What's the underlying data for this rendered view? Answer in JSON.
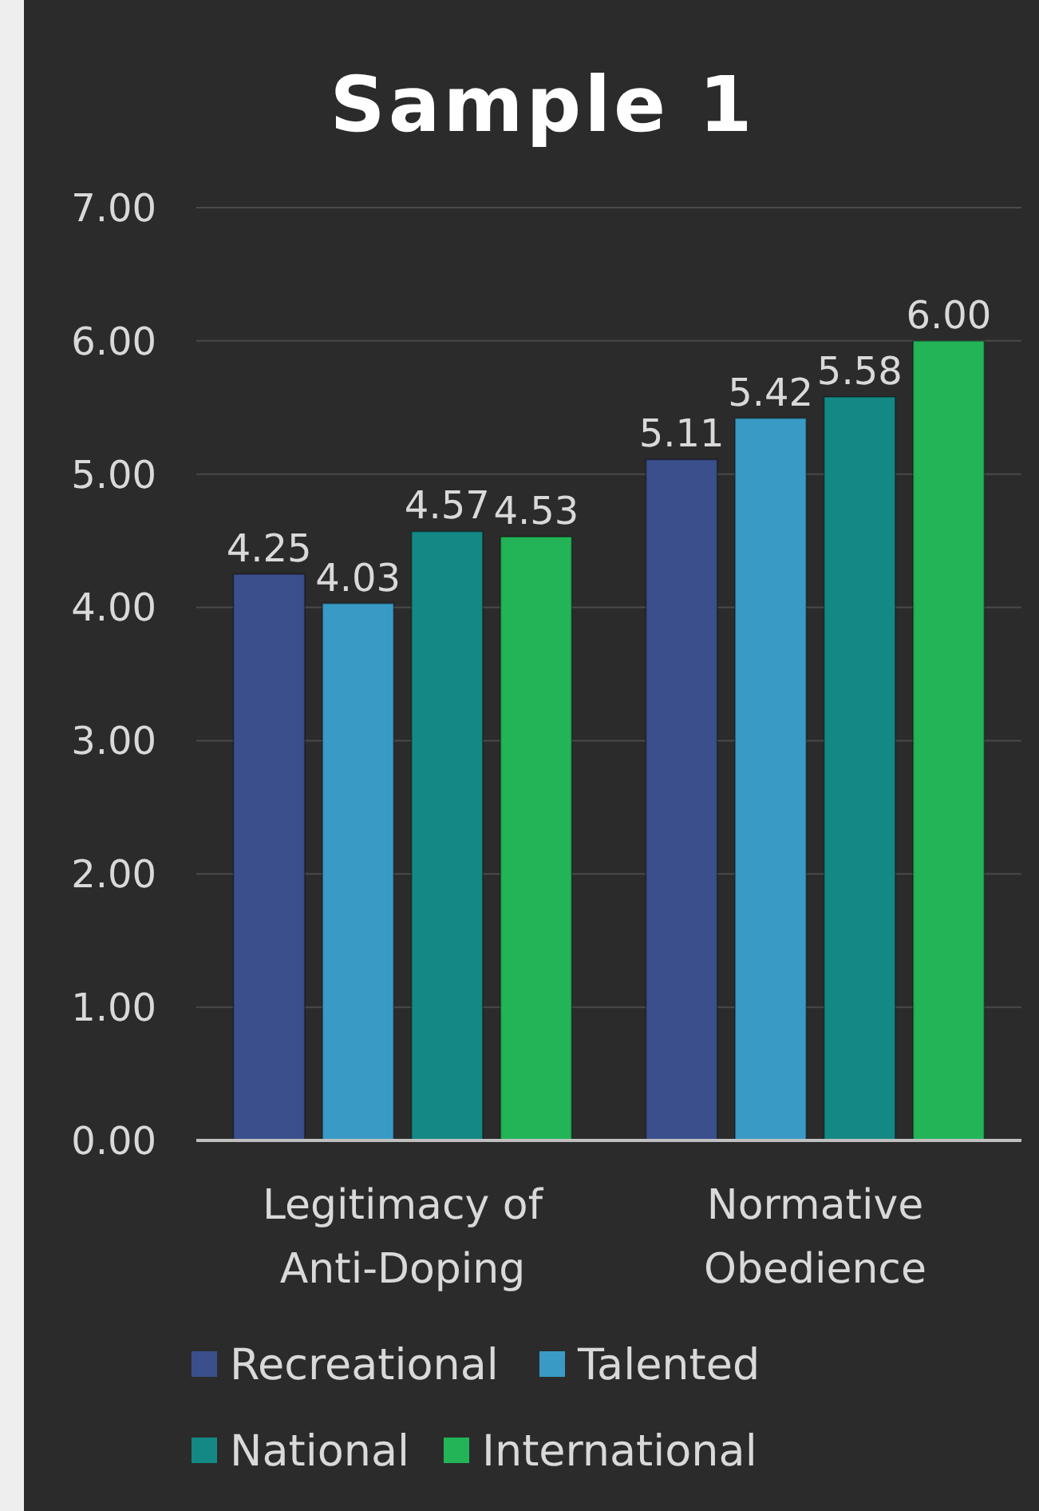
{
  "chart_data": {
    "type": "bar",
    "title": "Sample 1",
    "categories": [
      "Legitimacy of Anti-Doping",
      "Normative Obedience"
    ],
    "series": [
      {
        "name": "Recreational",
        "color": "#3b4f8c",
        "values": [
          4.25,
          5.11
        ]
      },
      {
        "name": "Talented",
        "color": "#3a9ac6",
        "values": [
          4.03,
          5.42
        ]
      },
      {
        "name": "National",
        "color": "#138884",
        "values": [
          4.57,
          5.58
        ]
      },
      {
        "name": "International",
        "color": "#22b457",
        "values": [
          4.53,
          6.0
        ]
      }
    ],
    "ylim": [
      0,
      7
    ],
    "yticks": [
      {
        "value": 0,
        "label": "0.00"
      },
      {
        "value": 1,
        "label": "1.00"
      },
      {
        "value": 2,
        "label": "2.00"
      },
      {
        "value": 3,
        "label": "3.00"
      },
      {
        "value": 4,
        "label": "4.00"
      },
      {
        "value": 5,
        "label": "5.00"
      },
      {
        "value": 6,
        "label": "6.00"
      },
      {
        "value": 7,
        "label": "7.00"
      }
    ],
    "value_labels": [
      [
        "4.25",
        "5.11"
      ],
      [
        "4.03",
        "5.42"
      ],
      [
        "4.57",
        "5.58"
      ],
      [
        "4.53",
        "6.00"
      ]
    ],
    "grid": "y",
    "legend": "bottom"
  }
}
